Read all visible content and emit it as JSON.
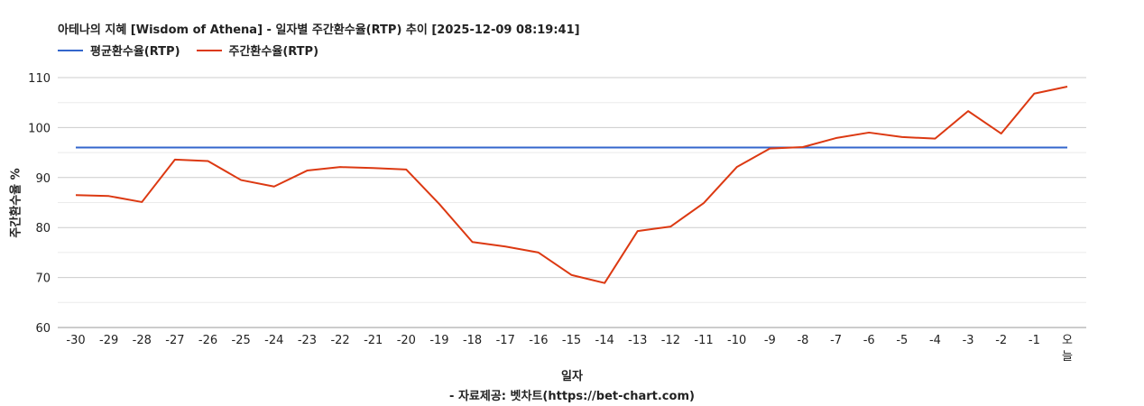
{
  "chart_data": {
    "type": "line",
    "title": "아테나의 지혜 [Wisdom of Athena] - 일자별 주간환수율(RTP) 추이 [2025-12-09 08:19:41]",
    "xlabel": "일자",
    "ylabel": "주간환수율 %",
    "credit": "- 자료제공: 벳차트(https://bet-chart.com)",
    "ylim": [
      60,
      110
    ],
    "yticks": [
      "60",
      "70",
      "80",
      "90",
      "100",
      "110"
    ],
    "ytick_values": [
      60,
      70,
      80,
      90,
      100,
      110
    ],
    "grid": true,
    "legend_position": "top-left",
    "categories": [
      "-30",
      "-29",
      "-28",
      "-27",
      "-26",
      "-25",
      "-24",
      "-23",
      "-22",
      "-21",
      "-20",
      "-19",
      "-18",
      "-17",
      "-16",
      "-15",
      "-14",
      "-13",
      "-12",
      "-11",
      "-10",
      "-9",
      "-8",
      "-7",
      "-6",
      "-5",
      "-4",
      "-3",
      "-2",
      "-1",
      "오늘"
    ],
    "series": [
      {
        "name": "평균환수율(RTP)",
        "color": "#3366cc",
        "values": [
          96,
          96,
          96,
          96,
          96,
          96,
          96,
          96,
          96,
          96,
          96,
          96,
          96,
          96,
          96,
          96,
          96,
          96,
          96,
          96,
          96,
          96,
          96,
          96,
          96,
          96,
          96,
          96,
          96,
          96,
          96
        ]
      },
      {
        "name": "주간환수율(RTP)",
        "color": "#dc3912",
        "values": [
          86.5,
          86.3,
          85.1,
          93.6,
          93.3,
          89.5,
          88.2,
          91.4,
          92.1,
          91.9,
          91.6,
          84.7,
          77.1,
          76.2,
          75.0,
          70.5,
          68.9,
          79.3,
          80.2,
          84.9,
          92.1,
          95.8,
          96.1,
          97.9,
          99.0,
          98.1,
          97.8,
          103.3,
          98.8,
          106.8,
          108.2
        ]
      }
    ]
  }
}
